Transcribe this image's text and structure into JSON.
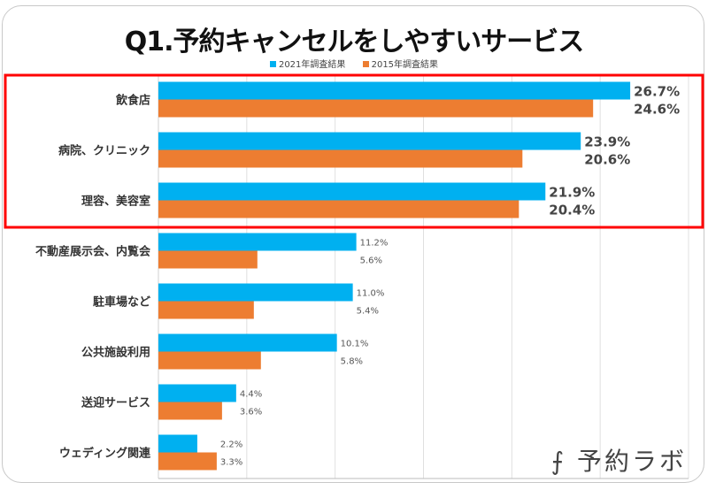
{
  "chart_data": {
    "type": "bar",
    "orientation": "horizontal",
    "title": "Q1.予約キャンセルをしやすいサービス",
    "categories": [
      "飲食店",
      "病院、クリニック",
      "理容、美容室",
      "不動産展示会、内覧会",
      "駐車場など",
      "公共施設利用",
      "送迎サービス",
      "ウェディング関連"
    ],
    "series": [
      {
        "name": "2021年調査結果",
        "color": "#00b0f0",
        "values": [
          26.7,
          23.9,
          21.9,
          11.2,
          11.0,
          10.1,
          4.4,
          2.2
        ],
        "labels": [
          "26.7%",
          "23.9%",
          "21.9%",
          "11.2%",
          "11.0%",
          "10.1%",
          "4.4%",
          "2.2%"
        ]
      },
      {
        "name": "2015年調査結果",
        "color": "#ed7d31",
        "values": [
          24.6,
          20.6,
          20.4,
          5.6,
          5.4,
          5.8,
          3.6,
          3.3
        ],
        "labels": [
          "24.6%",
          "20.6%",
          "20.4%",
          "5.6%",
          "5.4%",
          "5.8%",
          "3.6%",
          "3.3%"
        ]
      }
    ],
    "xlim": [
      0,
      30
    ],
    "grid": true,
    "legend_position": "top",
    "highlighted_categories": [
      "飲食店",
      "病院、クリニック",
      "理容、美容室"
    ],
    "highlight_color": "#ff0000"
  },
  "logo_text": "予約ラボ"
}
